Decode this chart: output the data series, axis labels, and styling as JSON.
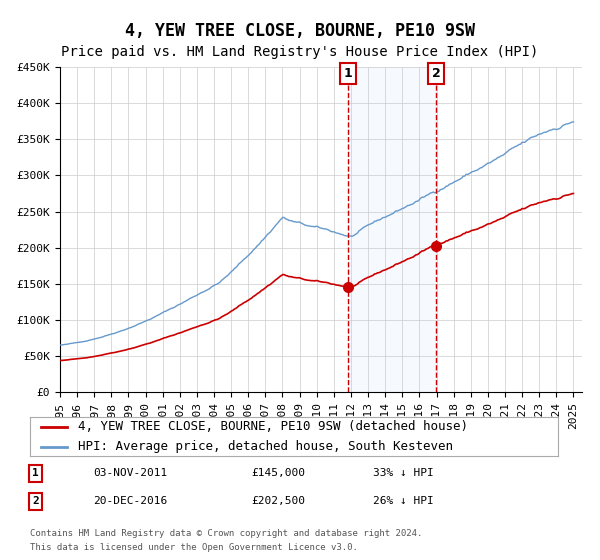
{
  "title": "4, YEW TREE CLOSE, BOURNE, PE10 9SW",
  "subtitle": "Price paid vs. HM Land Registry's House Price Index (HPI)",
  "xlabel": "",
  "ylabel": "",
  "ylim": [
    0,
    450000
  ],
  "xlim_start": 1995.0,
  "xlim_end": 2025.5,
  "ytick_labels": [
    "£0",
    "£50K",
    "£100K",
    "£150K",
    "£200K",
    "£250K",
    "£300K",
    "£350K",
    "£400K",
    "£450K"
  ],
  "ytick_values": [
    0,
    50000,
    100000,
    150000,
    200000,
    250000,
    300000,
    350000,
    400000,
    450000
  ],
  "xtick_years": [
    1995,
    1996,
    1997,
    1998,
    1999,
    2000,
    2001,
    2002,
    2003,
    2004,
    2005,
    2006,
    2007,
    2008,
    2009,
    2010,
    2011,
    2012,
    2013,
    2014,
    2015,
    2016,
    2017,
    2018,
    2019,
    2020,
    2021,
    2022,
    2023,
    2024,
    2025
  ],
  "sale1_date": 2011.84,
  "sale1_price": 145000,
  "sale1_label": "1",
  "sale1_text": "03-NOV-2011",
  "sale1_amount": "£145,000",
  "sale1_pct": "33% ↓ HPI",
  "sale2_date": 2016.97,
  "sale2_price": 202500,
  "sale2_label": "2",
  "sale2_text": "20-DEC-2016",
  "sale2_amount": "£202,500",
  "sale2_pct": "26% ↓ HPI",
  "hpi_color": "#6699cc",
  "sale_color": "#cc0000",
  "vline_color": "#cc0000",
  "shade_color": "#ddeeff",
  "legend_label1": "4, YEW TREE CLOSE, BOURNE, PE10 9SW (detached house)",
  "legend_label2": "HPI: Average price, detached house, South Kesteven",
  "footer1": "Contains HM Land Registry data © Crown copyright and database right 2024.",
  "footer2": "This data is licensed under the Open Government Licence v3.0.",
  "title_fontsize": 12,
  "subtitle_fontsize": 10,
  "axis_fontsize": 8,
  "legend_fontsize": 9,
  "annotation_fontsize": 8,
  "background_color": "#ffffff",
  "plot_background": "#ffffff",
  "grid_color": "#cccccc"
}
